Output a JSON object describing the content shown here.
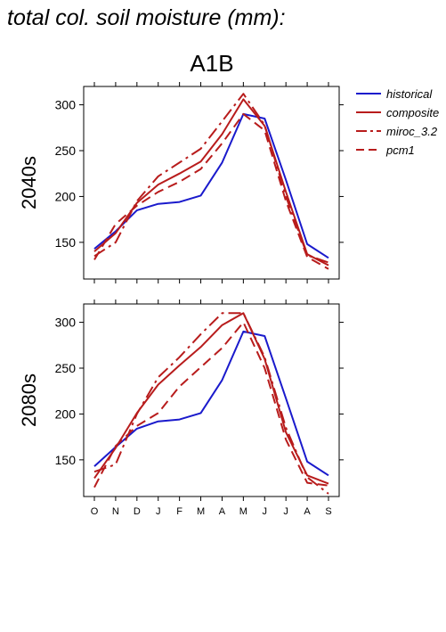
{
  "figure": {
    "title": "total col. soil moisture (mm):",
    "scenario": "A1B"
  },
  "legend": {
    "placement": "top-right",
    "entries": [
      {
        "label": "historical",
        "color": "#1a1acc",
        "dash": "solid"
      },
      {
        "label": "composite",
        "color": "#b81c1c",
        "dash": "solid"
      },
      {
        "label": "miroc_3.2",
        "color": "#b81c1c",
        "dash": "dashdot"
      },
      {
        "label": "pcm1",
        "color": "#b81c1c",
        "dash": "dashed"
      }
    ]
  },
  "chart_data": [
    {
      "type": "line",
      "title": "2040s",
      "x": [
        "O",
        "N",
        "D",
        "J",
        "F",
        "M",
        "A",
        "M",
        "J",
        "J",
        "A",
        "S"
      ],
      "ylim": [
        110,
        320
      ],
      "yticks": [
        150,
        200,
        250,
        300
      ],
      "series": [
        {
          "name": "historical",
          "values": [
            143,
            162,
            185,
            192,
            194,
            201,
            237,
            290,
            285,
            218,
            148,
            133
          ]
        },
        {
          "name": "composite",
          "values": [
            140,
            160,
            193,
            213,
            225,
            238,
            268,
            306,
            277,
            205,
            137,
            125
          ]
        },
        {
          "name": "miroc_3.2",
          "values": [
            135,
            150,
            195,
            222,
            237,
            252,
            282,
            312,
            278,
            200,
            136,
            128
          ]
        },
        {
          "name": "pcm1",
          "values": [
            131,
            170,
            190,
            205,
            216,
            230,
            258,
            290,
            272,
            195,
            134,
            121
          ]
        }
      ]
    },
    {
      "type": "line",
      "title": "2080s",
      "x": [
        "O",
        "N",
        "D",
        "J",
        "F",
        "M",
        "A",
        "M",
        "J",
        "J",
        "A",
        "S"
      ],
      "ylim": [
        110,
        320
      ],
      "yticks": [
        150,
        200,
        250,
        300
      ],
      "xticks": [
        "O",
        "N",
        "D",
        "J",
        "F",
        "M",
        "A",
        "M",
        "J",
        "J",
        "A",
        "S"
      ],
      "series": [
        {
          "name": "historical",
          "values": [
            143,
            164,
            184,
            192,
            194,
            201,
            237,
            290,
            285,
            217,
            148,
            133
          ]
        },
        {
          "name": "composite",
          "values": [
            130,
            163,
            201,
            232,
            253,
            273,
            297,
            310,
            260,
            180,
            133,
            124
          ]
        },
        {
          "name": "miroc_3.2",
          "values": [
            137,
            145,
            200,
            240,
            262,
            287,
            310,
            310,
            262,
            185,
            131,
            113
          ]
        },
        {
          "name": "pcm1",
          "values": [
            120,
            165,
            187,
            201,
            230,
            251,
            272,
            300,
            250,
            172,
            125,
            122
          ]
        }
      ]
    }
  ]
}
